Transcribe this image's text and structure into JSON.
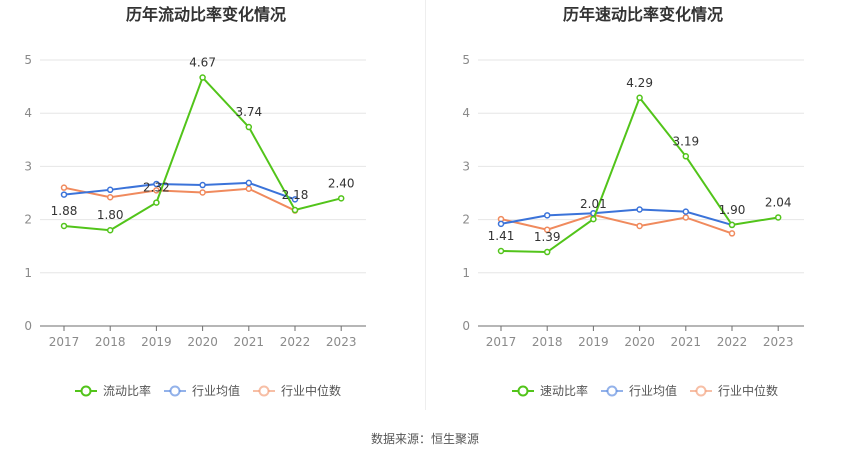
{
  "chart_data": [
    {
      "type": "line",
      "title": "历年流动比率变化情况",
      "categories": [
        "2017",
        "2018",
        "2019",
        "2020",
        "2021",
        "2022",
        "2023"
      ],
      "ylim": [
        0,
        5
      ],
      "yticks": [
        0,
        1,
        2,
        3,
        4,
        5
      ],
      "grid": true,
      "legend_position": "bottom",
      "series": [
        {
          "name": "流动比率",
          "color": "#52c41a",
          "values": [
            1.88,
            1.8,
            2.32,
            4.67,
            3.74,
            2.18,
            2.4
          ],
          "labels": [
            "1.88",
            "1.80",
            "2.32",
            "4.67",
            "3.74",
            "2.18",
            "2.40"
          ]
        },
        {
          "name": "行业均值",
          "color": "#3b73d9",
          "values": [
            2.47,
            2.56,
            2.67,
            2.65,
            2.69,
            2.38,
            null
          ]
        },
        {
          "name": "行业中位数",
          "color": "#f08a5d",
          "values": [
            2.6,
            2.42,
            2.55,
            2.51,
            2.58,
            2.17,
            null
          ]
        }
      ]
    },
    {
      "type": "line",
      "title": "历年速动比率变化情况",
      "categories": [
        "2017",
        "2018",
        "2019",
        "2020",
        "2021",
        "2022",
        "2023"
      ],
      "ylim": [
        0,
        5
      ],
      "yticks": [
        0,
        1,
        2,
        3,
        4,
        5
      ],
      "grid": true,
      "legend_position": "bottom",
      "series": [
        {
          "name": "速动比率",
          "color": "#52c41a",
          "values": [
            1.41,
            1.39,
            2.01,
            4.29,
            3.19,
            1.9,
            2.04
          ],
          "labels": [
            "1.41",
            "1.39",
            "2.01",
            "4.29",
            "3.19",
            "1.90",
            "2.04"
          ]
        },
        {
          "name": "行业均值",
          "color": "#3b73d9",
          "values": [
            1.92,
            2.08,
            2.12,
            2.19,
            2.15,
            1.9,
            null
          ]
        },
        {
          "name": "行业中位数",
          "color": "#f08a5d",
          "values": [
            2.01,
            1.81,
            2.09,
            1.88,
            2.04,
            1.74,
            null
          ]
        }
      ]
    }
  ],
  "footer": {
    "source": "数据来源：恒生聚源"
  }
}
